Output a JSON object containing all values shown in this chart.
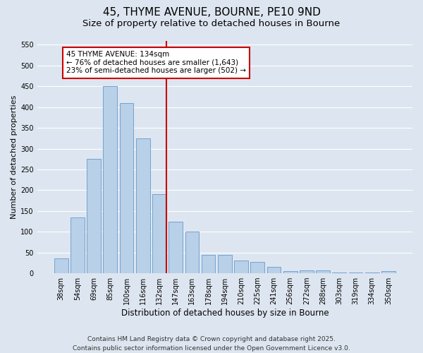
{
  "title": "45, THYME AVENUE, BOURNE, PE10 9ND",
  "subtitle": "Size of property relative to detached houses in Bourne",
  "xlabel": "Distribution of detached houses by size in Bourne",
  "ylabel": "Number of detached properties",
  "categories": [
    "38sqm",
    "54sqm",
    "69sqm",
    "85sqm",
    "100sqm",
    "116sqm",
    "132sqm",
    "147sqm",
    "163sqm",
    "178sqm",
    "194sqm",
    "210sqm",
    "225sqm",
    "241sqm",
    "256sqm",
    "272sqm",
    "288sqm",
    "303sqm",
    "319sqm",
    "334sqm",
    "350sqm"
  ],
  "values": [
    35,
    135,
    275,
    450,
    410,
    325,
    190,
    125,
    100,
    45,
    45,
    30,
    28,
    15,
    5,
    7,
    7,
    2,
    2,
    1,
    5
  ],
  "bar_color": "#b8d0e8",
  "bar_edge_color": "#6699cc",
  "background_color": "#dde6f0",
  "grid_color": "#ffffff",
  "vline_color": "#cc0000",
  "vline_index": 6,
  "annotation_line1": "45 THYME AVENUE: 134sqm",
  "annotation_line2": "← 76% of detached houses are smaller (1,643)",
  "annotation_line3": "23% of semi-detached houses are larger (502) →",
  "annotation_box_facecolor": "#ffffff",
  "annotation_box_edgecolor": "#cc0000",
  "ylim": [
    0,
    560
  ],
  "yticks": [
    0,
    50,
    100,
    150,
    200,
    250,
    300,
    350,
    400,
    450,
    500,
    550
  ],
  "footer_line1": "Contains HM Land Registry data © Crown copyright and database right 2025.",
  "footer_line2": "Contains public sector information licensed under the Open Government Licence v3.0.",
  "title_fontsize": 11,
  "subtitle_fontsize": 9.5,
  "ylabel_fontsize": 8,
  "xlabel_fontsize": 8.5,
  "tick_fontsize": 7,
  "annotation_fontsize": 7.5,
  "footer_fontsize": 6.5
}
